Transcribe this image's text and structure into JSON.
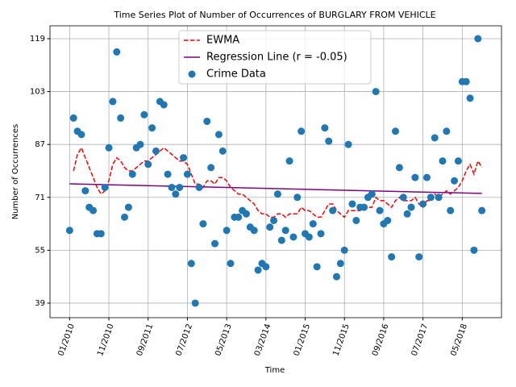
{
  "chart_data": {
    "type": "scatter",
    "title": "Time Series Plot of Number of Occurrences of BURGLARY FROM VEHICLE",
    "xlabel": "Time",
    "ylabel": "Number of Occurrences",
    "xlim": [
      "2009-08",
      "2019-03"
    ],
    "xticks": [
      {
        "value": "2010-01",
        "label": "01/2010"
      },
      {
        "value": "2010-11",
        "label": "11/2010"
      },
      {
        "value": "2011-09",
        "label": "09/2011"
      },
      {
        "value": "2012-07",
        "label": "07/2012"
      },
      {
        "value": "2013-05",
        "label": "05/2013"
      },
      {
        "value": "2014-03",
        "label": "03/2014"
      },
      {
        "value": "2015-01",
        "label": "01/2015"
      },
      {
        "value": "2015-11",
        "label": "11/2015"
      },
      {
        "value": "2016-09",
        "label": "09/2016"
      },
      {
        "value": "2017-07",
        "label": "07/2017"
      },
      {
        "value": "2018-05",
        "label": "05/2018"
      }
    ],
    "ylim": [
      34.6,
      122.9
    ],
    "yticks": [
      39,
      55,
      71,
      87,
      103,
      119
    ],
    "grid": true,
    "legend": "upper center",
    "series": [
      {
        "name": "EWMA",
        "kind": "line",
        "dash": true,
        "color": "#ff0000",
        "x": [
          "2010-01",
          "2010-02",
          "2010-03",
          "2010-04",
          "2010-05",
          "2010-06",
          "2010-07",
          "2010-08",
          "2010-09",
          "2010-10",
          "2010-11",
          "2010-12",
          "2011-01",
          "2011-02",
          "2011-03",
          "2011-04",
          "2011-05",
          "2011-06",
          "2011-07",
          "2011-08",
          "2011-09",
          "2011-10",
          "2011-11",
          "2011-12",
          "2012-01",
          "2012-02",
          "2012-03",
          "2012-04",
          "2012-05",
          "2012-06",
          "2012-07",
          "2012-08",
          "2012-09",
          "2012-10",
          "2012-11",
          "2012-12",
          "2013-01",
          "2013-02",
          "2013-03",
          "2013-04",
          "2013-05",
          "2013-06",
          "2013-07",
          "2013-08",
          "2013-09",
          "2013-10",
          "2013-11",
          "2013-12",
          "2014-01",
          "2014-02",
          "2014-03",
          "2014-04",
          "2014-05",
          "2014-06",
          "2014-07",
          "2014-08",
          "2014-09",
          "2014-10",
          "2014-11",
          "2014-12",
          "2015-01",
          "2015-02",
          "2015-03",
          "2015-04",
          "2015-05",
          "2015-06",
          "2015-07",
          "2015-08",
          "2015-09",
          "2015-10",
          "2015-11",
          "2015-12",
          "2016-01",
          "2016-02",
          "2016-03",
          "2016-04",
          "2016-05",
          "2016-06",
          "2016-07",
          "2016-08",
          "2016-09",
          "2016-10",
          "2016-11",
          "2016-12",
          "2017-01",
          "2017-02",
          "2017-03",
          "2017-04",
          "2017-05",
          "2017-06",
          "2017-07",
          "2017-08",
          "2017-09",
          "2017-10",
          "2017-11",
          "2017-12",
          "2018-01",
          "2018-02",
          "2018-03",
          "2018-04",
          "2018-05",
          "2018-06",
          "2018-07",
          "2018-08",
          "2018-09",
          "2018-10"
        ],
        "values": [
          null,
          79,
          84,
          86,
          83,
          80,
          77,
          74,
          72,
          73,
          76,
          81,
          83,
          82,
          80,
          79,
          79,
          80,
          81,
          82,
          82,
          83,
          84,
          85,
          86,
          85,
          84,
          83,
          82,
          82,
          81,
          78,
          75,
          75,
          74,
          76,
          76,
          75,
          77,
          77,
          76,
          74,
          73,
          72,
          72,
          71,
          70,
          69,
          67,
          66,
          66,
          65,
          65,
          66,
          66,
          65,
          66,
          66,
          66,
          68,
          67,
          67,
          66,
          65,
          65,
          67,
          69,
          69,
          67,
          66,
          65,
          67,
          67,
          67,
          67,
          68,
          68,
          68,
          71,
          70,
          70,
          69,
          68,
          70,
          71,
          70,
          70,
          70,
          71,
          69,
          68,
          70,
          70,
          72,
          71,
          72,
          73,
          72,
          73,
          74,
          76,
          79,
          81,
          78,
          82,
          80
        ]
      },
      {
        "name": "Regression Line (r = -0.05)",
        "kind": "line",
        "dash": false,
        "color": "#800080",
        "x": [
          "2010-01",
          "2018-10"
        ],
        "values": [
          75.1,
          72.2
        ]
      },
      {
        "name": "Crime Data",
        "kind": "scatter",
        "color": "#1f77b4",
        "x": [
          "2010-01",
          "2010-02",
          "2010-03",
          "2010-04",
          "2010-05",
          "2010-06",
          "2010-07",
          "2010-08",
          "2010-09",
          "2010-10",
          "2010-11",
          "2010-12",
          "2011-01",
          "2011-02",
          "2011-03",
          "2011-04",
          "2011-05",
          "2011-06",
          "2011-07",
          "2011-08",
          "2011-09",
          "2011-10",
          "2011-11",
          "2011-12",
          "2012-01",
          "2012-02",
          "2012-03",
          "2012-04",
          "2012-05",
          "2012-06",
          "2012-07",
          "2012-08",
          "2012-09",
          "2012-10",
          "2012-11",
          "2012-12",
          "2013-01",
          "2013-02",
          "2013-03",
          "2013-04",
          "2013-05",
          "2013-06",
          "2013-07",
          "2013-08",
          "2013-09",
          "2013-10",
          "2013-11",
          "2013-12",
          "2014-01",
          "2014-02",
          "2014-03",
          "2014-04",
          "2014-05",
          "2014-06",
          "2014-07",
          "2014-08",
          "2014-09",
          "2014-10",
          "2014-11",
          "2014-12",
          "2015-01",
          "2015-02",
          "2015-03",
          "2015-04",
          "2015-05",
          "2015-06",
          "2015-07",
          "2015-08",
          "2015-09",
          "2015-10",
          "2015-11",
          "2015-12",
          "2016-01",
          "2016-02",
          "2016-03",
          "2016-04",
          "2016-05",
          "2016-06",
          "2016-07",
          "2016-08",
          "2016-09",
          "2016-10",
          "2016-11",
          "2016-12",
          "2017-01",
          "2017-02",
          "2017-03",
          "2017-04",
          "2017-05",
          "2017-06",
          "2017-07",
          "2017-08",
          "2017-09",
          "2017-10",
          "2017-11",
          "2017-12",
          "2018-01",
          "2018-02",
          "2018-03",
          "2018-04",
          "2018-05",
          "2018-06",
          "2018-07",
          "2018-08",
          "2018-09",
          "2018-10"
        ],
        "values": [
          61,
          95,
          91,
          90,
          73,
          68,
          67,
          60,
          60,
          74,
          86,
          100,
          115,
          95,
          65,
          68,
          78,
          86,
          87,
          96,
          81,
          92,
          85,
          100,
          99,
          78,
          74,
          72,
          74,
          83,
          78,
          51,
          39,
          74,
          63,
          94,
          80,
          57,
          90,
          85,
          61,
          51,
          65,
          65,
          67,
          66,
          62,
          61,
          49,
          51,
          50,
          62,
          64,
          72,
          58,
          61,
          82,
          59,
          71,
          91,
          60,
          59,
          63,
          50,
          60,
          92,
          88,
          67,
          47,
          51,
          55,
          87,
          69,
          64,
          68,
          68,
          71,
          72,
          103,
          67,
          63,
          64,
          53,
          91,
          80,
          71,
          66,
          68,
          77,
          53,
          69,
          77,
          71,
          89,
          71,
          82,
          91,
          67,
          76,
          82,
          106,
          106,
          101,
          55,
          119,
          67
        ]
      }
    ]
  }
}
